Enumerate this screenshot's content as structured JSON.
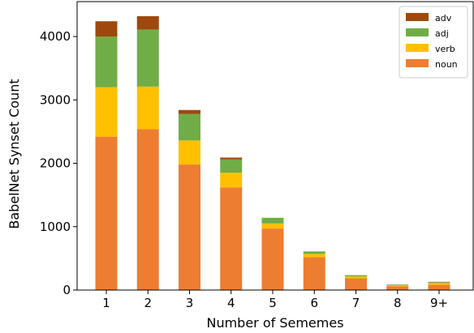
{
  "chart_data": {
    "type": "bar",
    "stacked": true,
    "categories": [
      "1",
      "2",
      "3",
      "4",
      "5",
      "6",
      "7",
      "8",
      "9+"
    ],
    "series": [
      {
        "name": "noun",
        "color": "#ed7d31",
        "values": [
          2420,
          2540,
          1980,
          1620,
          970,
          520,
          185,
          60,
          85
        ]
      },
      {
        "name": "verb",
        "color": "#ffc000",
        "values": [
          780,
          670,
          380,
          230,
          80,
          50,
          30,
          15,
          25
        ]
      },
      {
        "name": "adj",
        "color": "#70ad47",
        "values": [
          800,
          900,
          420,
          210,
          90,
          40,
          20,
          12,
          15
        ]
      },
      {
        "name": "adv",
        "color": "#9e480e",
        "values": [
          240,
          210,
          60,
          30,
          0,
          0,
          0,
          0,
          5
        ]
      }
    ],
    "xlabel": "Number of Sememes",
    "ylabel": "BabelNet Synset Count",
    "ylim": [
      0,
      4550
    ],
    "yticks": [
      0,
      1000,
      2000,
      3000,
      4000
    ],
    "legend_order": [
      "adv",
      "adj",
      "verb",
      "noun"
    ],
    "legend_position": "top-right",
    "grid": false
  }
}
